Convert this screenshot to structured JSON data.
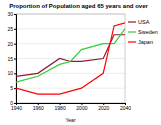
{
  "chart_data": {
    "type": "line",
    "title": "Proportion of Population aged 65 years and over",
    "x_label": "Year",
    "x": [
      1940,
      1960,
      1980,
      1990,
      2000,
      2020,
      2030,
      2040
    ],
    "series": [
      {
        "name": "USA",
        "color": "#8b1a3a",
        "values": [
          9,
          10,
          15,
          14,
          14,
          15,
          23,
          23
        ]
      },
      {
        "name": "Sweden",
        "color": "#33cc33",
        "values": [
          7,
          9,
          13,
          14,
          18,
          20,
          20,
          25
        ]
      },
      {
        "name": "Japan",
        "color": "#ff0000",
        "values": [
          5,
          3,
          3,
          4,
          5,
          10,
          26,
          27
        ]
      }
    ],
    "xlim": [
      1940,
      2040
    ],
    "xticks": [
      1940,
      1960,
      1980,
      2000,
      2020,
      2040
    ],
    "ylim": [
      0,
      30
    ],
    "yticks": [
      0,
      5,
      10,
      15,
      20,
      25,
      30
    ],
    "grid": true,
    "legend": "right"
  }
}
